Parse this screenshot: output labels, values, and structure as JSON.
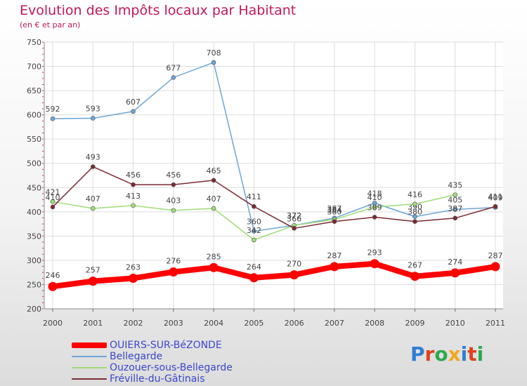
{
  "chart_data": {
    "type": "line",
    "title": "Evolution des Impôts locaux par Habitant",
    "subtitle": "(en € et par an)",
    "xlabel": "",
    "ylabel": "",
    "x": [
      "2000",
      "2001",
      "2002",
      "2003",
      "2004",
      "2005",
      "2006",
      "2007",
      "2008",
      "2009",
      "2010",
      "2011"
    ],
    "ylim": [
      200,
      750
    ],
    "yticks": [
      200,
      250,
      300,
      350,
      400,
      450,
      500,
      550,
      600,
      650,
      700,
      750
    ],
    "grid": true,
    "series": [
      {
        "name": "OUIERS-SUR-BéZONDE",
        "color": "#ff0000",
        "emphasis": true,
        "values": [
          246,
          257,
          263,
          276,
          285,
          264,
          270,
          287,
          293,
          267,
          274,
          287
        ]
      },
      {
        "name": "Bellegarde",
        "color": "#6ea6d8",
        "values": [
          592,
          593,
          607,
          677,
          708,
          360,
          372,
          387,
          418,
          390,
          405,
          409
        ]
      },
      {
        "name": "Ouzouer-sous-Bellegarde",
        "color": "#a0dc78",
        "values": [
          421,
          407,
          413,
          403,
          407,
          342,
          372,
          384,
          410,
          416,
          435,
          null
        ]
      },
      {
        "name": "Fréville-du-Gâtinais",
        "color": "#7a2a33",
        "values": [
          410,
          493,
          456,
          456,
          465,
          411,
          366,
          380,
          389,
          380,
          387,
          411
        ]
      }
    ]
  },
  "logo": {
    "text": "Proxiti",
    "colors": [
      "#2f7fd1",
      "#e0401e",
      "#2fa84f",
      "#f2a81d",
      "#2f7fd1",
      "#e0401e",
      "#2fa84f"
    ]
  }
}
